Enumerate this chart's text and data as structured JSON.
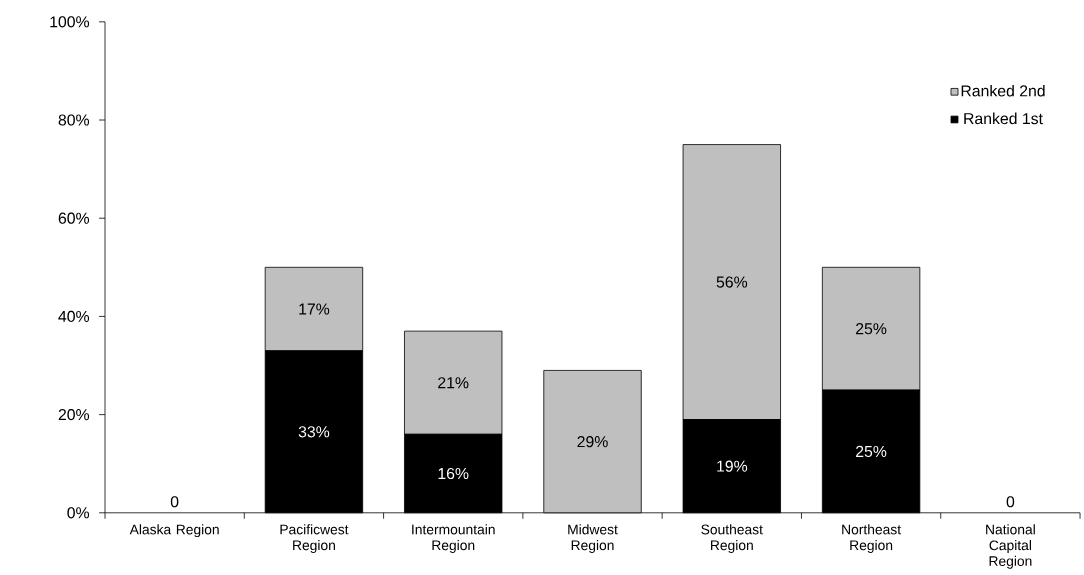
{
  "chart_data": {
    "type": "bar",
    "stacked": true,
    "legend": "top right",
    "grid": false,
    "categories": [
      "Alaska Region",
      "Pacificwest Region",
      "Intermountain Region",
      "Midwest Region",
      "Southeast Region",
      "Northeast Region",
      "National Capital Region"
    ],
    "series": [
      {
        "name": "Ranked 1st",
        "color": "#000000",
        "values": [
          0,
          33,
          16,
          0,
          19,
          25,
          0
        ],
        "value_labels": [
          null,
          "33%",
          "16%",
          null,
          "19%",
          "25%",
          null
        ]
      },
      {
        "name": "Ranked 2nd",
        "color": "#bfbfbf",
        "values": [
          0,
          17,
          21,
          29,
          56,
          25,
          0
        ],
        "value_labels": [
          "0",
          "17%",
          "21%",
          "29%",
          "56%",
          "25%",
          "0"
        ]
      }
    ],
    "ylim": [
      0,
      100
    ],
    "yticks": [
      {
        "value": 0,
        "label": "0%"
      },
      {
        "value": 20,
        "label": "20%"
      },
      {
        "value": 40,
        "label": "40%"
      },
      {
        "value": 60,
        "label": "60%"
      },
      {
        "value": 80,
        "label": "80%"
      },
      {
        "value": 100,
        "label": "100%"
      }
    ]
  }
}
